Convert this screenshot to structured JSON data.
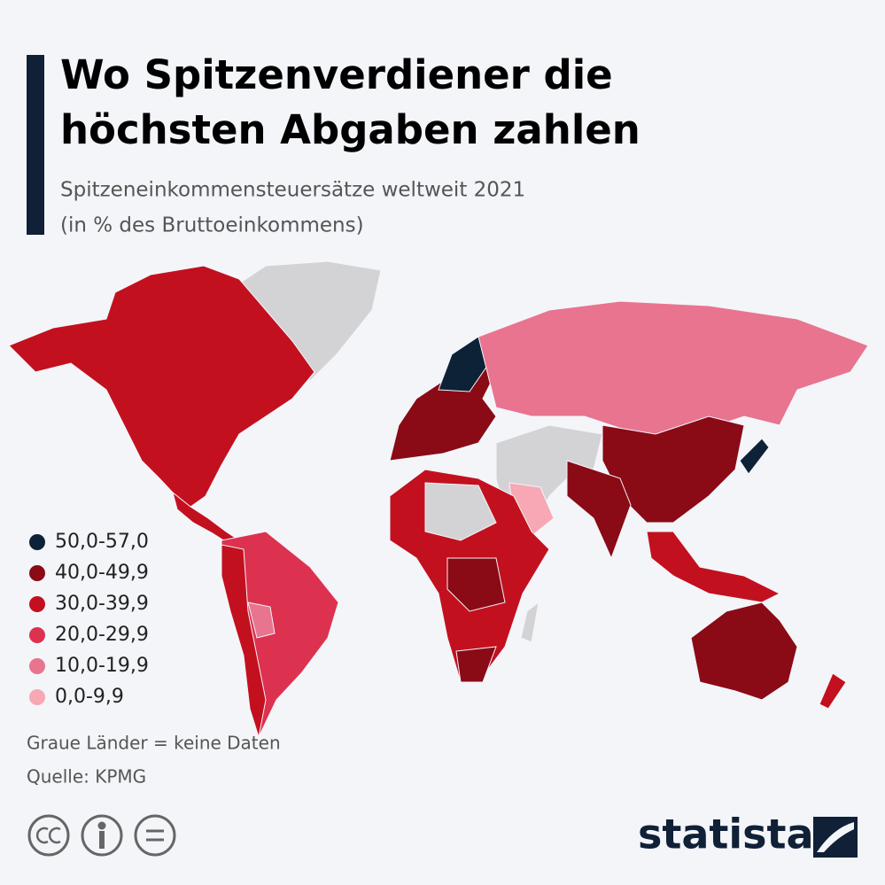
{
  "header": {
    "title": [
      "Wo Spitzenverdiener die",
      "höchsten Abgaben zahlen"
    ],
    "subtitle": [
      "Spitzeneinkommensteuersätze weltweit 2021",
      "(in % des Bruttoeinkommens)"
    ]
  },
  "legend": [
    {
      "label": "50,0-57,0",
      "color": "#0d2137"
    },
    {
      "label": "40,0-49,9",
      "color": "#8a0a16"
    },
    {
      "label": "30,0-39,9",
      "color": "#c3101f"
    },
    {
      "label": "20,0-29,9",
      "color": "#dd3150"
    },
    {
      "label": "10,0-19,9",
      "color": "#e8748f"
    },
    {
      "label": "0,0-9,9",
      "color": "#f7a8b4"
    }
  ],
  "notes": {
    "no_data": "Graue Länder = keine Daten",
    "source": "Quelle: KPMG"
  },
  "brand": "statista"
}
